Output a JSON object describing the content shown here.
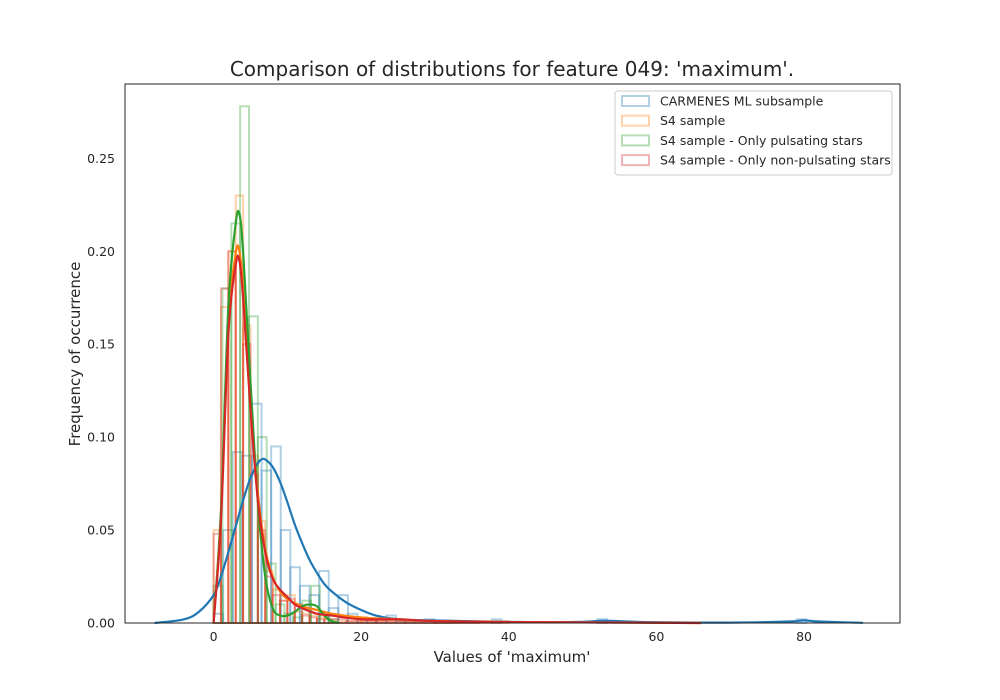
{
  "chart_data": {
    "type": "histogram",
    "title": "Comparison of distributions for feature 049: 'maximum'.",
    "xlabel": "Values of 'maximum'",
    "ylabel": "Frequency of occurrence",
    "xlim": [
      -12,
      93
    ],
    "ylim": [
      0,
      0.29
    ],
    "xticks": [
      0,
      20,
      40,
      60,
      80
    ],
    "xtick_labels": [
      "0",
      "20",
      "40",
      "60",
      "80"
    ],
    "yticks": [
      0,
      0.05,
      0.1,
      0.15,
      0.2,
      0.25
    ],
    "ytick_labels": [
      "0.00",
      "0.05",
      "0.10",
      "0.15",
      "0.20",
      "0.25"
    ],
    "grid": false,
    "legend_position": "top-right",
    "series": [
      {
        "name": "CARMENES ML subsample",
        "color": "#1f77b4",
        "histogram": {
          "bin_edges": [
            0,
            1.3,
            2.6,
            3.9,
            5.2,
            6.5,
            7.8,
            9.1,
            10.4,
            11.7,
            13.0,
            14.3,
            15.6,
            16.9,
            18.2,
            19.5,
            20.8,
            22.1,
            23.4,
            24.7,
            26.0,
            27.3,
            28.6,
            29.9,
            31.2,
            32.5,
            37.7,
            39.0,
            52.0,
            53.3,
            79.0,
            80.3
          ],
          "heights": [
            0.005,
            0.05,
            0.092,
            0.09,
            0.118,
            0.082,
            0.095,
            0.05,
            0.03,
            0.02,
            0.015,
            0.028,
            0.008,
            0.015,
            0.005,
            0.003,
            0.002,
            0.002,
            0.004,
            0.001,
            0.001,
            0.001,
            0.002,
            0.001,
            0.001,
            0.0,
            0.002,
            0.0,
            0.002,
            0.0,
            0.002
          ]
        },
        "kde": {
          "x": [
            -8,
            -4,
            -2,
            0,
            1,
            2,
            3,
            4,
            5,
            6,
            6.5,
            7,
            8,
            9,
            10,
            11,
            12,
            13,
            14,
            15,
            16,
            18,
            20,
            22,
            25,
            28,
            32,
            36,
            40,
            45,
            50,
            53,
            56,
            60,
            70,
            78,
            80,
            82,
            88
          ],
          "y": [
            0.0,
            0.002,
            0.006,
            0.015,
            0.025,
            0.038,
            0.052,
            0.066,
            0.078,
            0.086,
            0.088,
            0.088,
            0.084,
            0.076,
            0.065,
            0.053,
            0.043,
            0.034,
            0.027,
            0.021,
            0.017,
            0.011,
            0.007,
            0.004,
            0.002,
            0.0015,
            0.0012,
            0.0008,
            0.0006,
            0.0004,
            0.0006,
            0.0012,
            0.0008,
            0.0004,
            0.0002,
            0.0008,
            0.0014,
            0.0008,
            0.0001
          ]
        }
      },
      {
        "name": "S4 sample",
        "color": "#ff7f0e",
        "histogram": {
          "bin_edges": [
            0,
            1,
            2,
            3,
            4,
            5,
            6,
            7,
            8,
            9,
            10,
            11,
            12,
            13,
            14,
            15,
            16,
            20,
            30,
            40,
            50,
            60,
            66
          ],
          "heights": [
            0.05,
            0.17,
            0.2,
            0.23,
            0.16,
            0.09,
            0.055,
            0.028,
            0.018,
            0.012,
            0.015,
            0.006,
            0.005,
            0.004,
            0.003,
            0.002,
            0.001,
            0.001,
            0.001,
            0.0,
            0.0,
            0.0
          ]
        },
        "kde": {
          "x": [
            0,
            1,
            2,
            3,
            3.5,
            4,
            5,
            6,
            7,
            8,
            9,
            10,
            12,
            14,
            16,
            20,
            25,
            30,
            40,
            50,
            60,
            66
          ],
          "y": [
            0.0,
            0.06,
            0.16,
            0.199,
            0.2,
            0.18,
            0.12,
            0.07,
            0.04,
            0.025,
            0.017,
            0.013,
            0.009,
            0.007,
            0.005,
            0.003,
            0.002,
            0.001,
            0.0005,
            0.0003,
            0.0001,
            0.0
          ]
        }
      },
      {
        "name": "S4 sample - Only pulsating stars",
        "color": "#2ca02c",
        "histogram": {
          "bin_edges": [
            0,
            1.2,
            2.4,
            3.6,
            4.8,
            6.0,
            7.2,
            8.4,
            9.6,
            10.8,
            12.0,
            13.2,
            14.4,
            15.6,
            16.8
          ],
          "heights": [
            0.02,
            0.18,
            0.215,
            0.278,
            0.165,
            0.1,
            0.032,
            0.01,
            0.005,
            0.003,
            0.012,
            0.02,
            0.005,
            0.002
          ]
        },
        "kde": {
          "x": [
            0,
            1,
            2,
            3,
            3.5,
            4,
            5,
            6,
            7,
            8,
            9,
            10,
            11,
            12,
            13,
            14,
            15,
            16,
            17
          ],
          "y": [
            0.0,
            0.06,
            0.17,
            0.215,
            0.22,
            0.2,
            0.13,
            0.065,
            0.025,
            0.008,
            0.004,
            0.004,
            0.006,
            0.009,
            0.01,
            0.009,
            0.004,
            0.001,
            0.0
          ]
        }
      },
      {
        "name": "S4 sample - Only non-pulsating stars",
        "color": "#d62728",
        "histogram": {
          "bin_edges": [
            0,
            1,
            2,
            3,
            4,
            5,
            6,
            7,
            8,
            9,
            10,
            11,
            12,
            13,
            14,
            15,
            18,
            22,
            26,
            30,
            36,
            42,
            50,
            60,
            66
          ],
          "heights": [
            0.048,
            0.18,
            0.2,
            0.195,
            0.15,
            0.08,
            0.05,
            0.025,
            0.015,
            0.012,
            0.013,
            0.01,
            0.004,
            0.003,
            0.002,
            0.002,
            0.001,
            0.001,
            0.001,
            0.001,
            0.0,
            0.0,
            0.0,
            0.0
          ]
        },
        "kde": {
          "x": [
            0,
            1,
            2,
            3,
            3.5,
            4,
            5,
            6,
            7,
            8,
            9,
            10,
            11,
            12,
            14,
            16,
            20,
            25,
            30,
            40,
            50,
            60,
            66
          ],
          "y": [
            0.0,
            0.055,
            0.155,
            0.193,
            0.195,
            0.175,
            0.115,
            0.066,
            0.038,
            0.024,
            0.018,
            0.014,
            0.01,
            0.008,
            0.005,
            0.004,
            0.002,
            0.002,
            0.001,
            0.0005,
            0.0003,
            0.0001,
            0.0
          ]
        }
      }
    ]
  }
}
